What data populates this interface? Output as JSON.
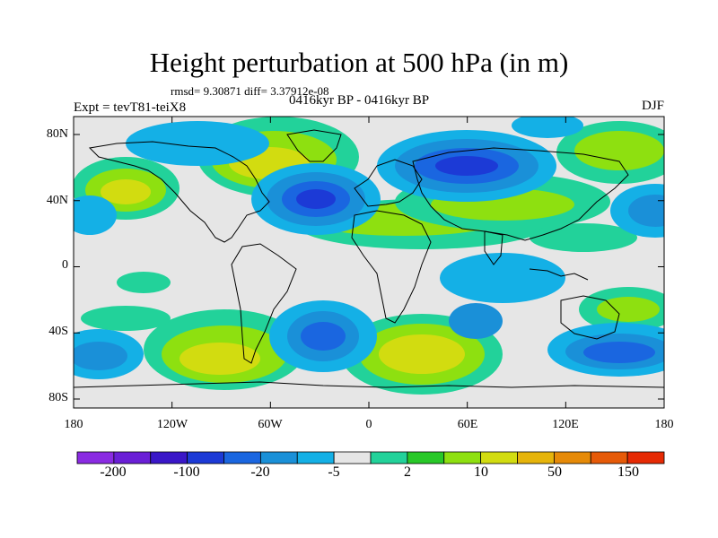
{
  "title": "Height perturbation at 500 hPa (in m)",
  "stats": "rmsd= 9.30871  diff= 3.37912e-08",
  "experiment": "Expt = tevT81-teiX8",
  "period": "0416kyr BP - 0416kyr BP",
  "season": "DJF",
  "map": {
    "lat_ticks": [
      "80N",
      "40N",
      "0",
      "40S",
      "80S"
    ],
    "lon_ticks": [
      "180",
      "120W",
      "60W",
      "0",
      "60E",
      "120E",
      "180"
    ]
  },
  "colorbar": {
    "colors": [
      "#8a2be2",
      "#6a1fd6",
      "#3a17c8",
      "#1c3ad6",
      "#1a66e0",
      "#1a90d8",
      "#14b0e6",
      "#e6e6e6",
      "#22d29a",
      "#28c828",
      "#8ee010",
      "#d2dc10",
      "#e6b40a",
      "#e68a08",
      "#e65a08",
      "#e62a04"
    ],
    "labels": [
      "-200",
      "-100",
      "-20",
      "-5",
      "2",
      "10",
      "50",
      "150"
    ]
  },
  "colors": {
    "land_outline": "#000000",
    "neutral": "#e6e6e6"
  }
}
